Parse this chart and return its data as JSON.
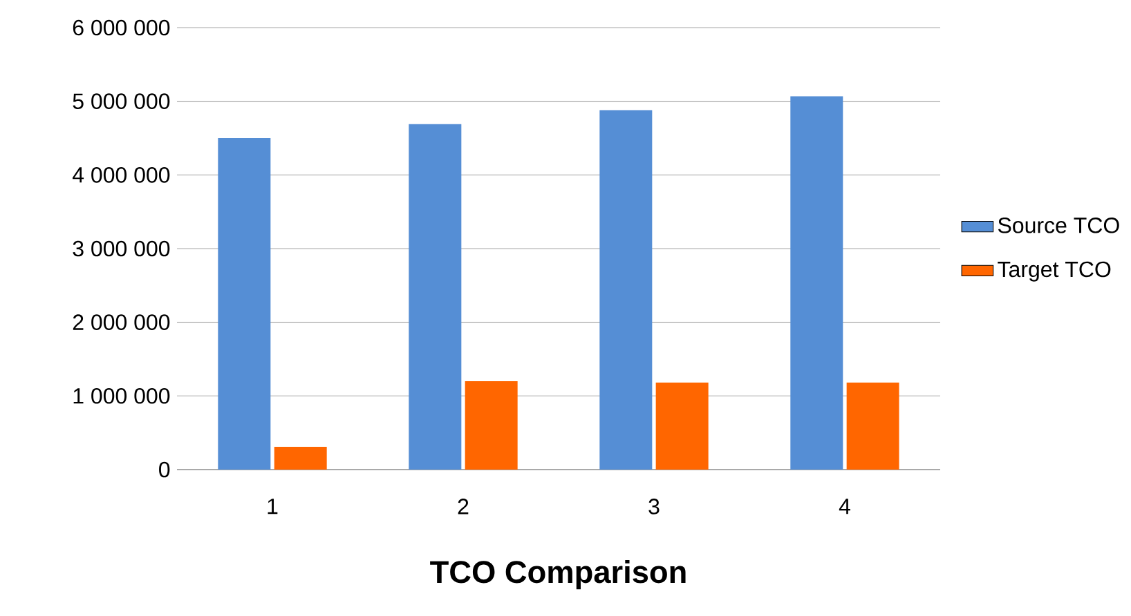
{
  "chart_data": {
    "type": "bar",
    "xlabel": "TCO Comparison",
    "categories": [
      "1",
      "2",
      "3",
      "4"
    ],
    "series": [
      {
        "name": "Source TCO",
        "color": "#558ed5",
        "values": [
          4500000,
          4690000,
          4880000,
          5070000
        ]
      },
      {
        "name": "Target TCO",
        "color": "#ff6600",
        "values": [
          310000,
          1200000,
          1180000,
          1180000
        ]
      }
    ],
    "ylim": [
      0,
      6000000
    ],
    "yticks": [
      {
        "value": 0,
        "label": "0"
      },
      {
        "value": 1000000,
        "label": "1 000 000"
      },
      {
        "value": 2000000,
        "label": "2 000 000"
      },
      {
        "value": 3000000,
        "label": "3 000 000"
      },
      {
        "value": 4000000,
        "label": "4 000 000"
      },
      {
        "value": 5000000,
        "label": "5 000 000"
      },
      {
        "value": 6000000,
        "label": "6 000 000"
      }
    ],
    "grid": "y",
    "legend": "right"
  }
}
